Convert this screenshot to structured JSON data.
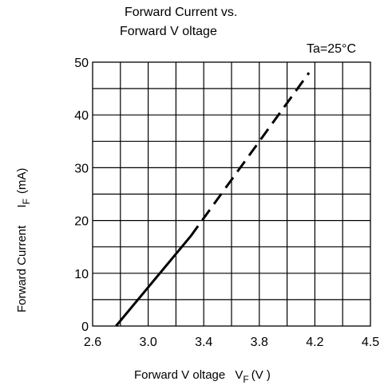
{
  "chart_data": {
    "type": "line",
    "title_line1": "Forward Current vs.",
    "title_line2": "Forward V oltage",
    "condition": "Ta=25°C",
    "xlabel": "Forward V oltage",
    "xlabel_symbol": "V",
    "xlabel_sub": "F",
    "xlabel_unit": "(V )",
    "ylabel_left": "Forward Current",
    "ylabel_symbol": "I",
    "ylabel_sub": "F",
    "ylabel_unit": "(mA)",
    "xlim": [
      2.6,
      4.5
    ],
    "ylim": [
      0,
      50
    ],
    "x_ticks": [
      "2.6",
      "3.0",
      "3.4",
      "3.8",
      "4.2",
      "4.5"
    ],
    "y_ticks": [
      "50",
      "40",
      "30",
      "20",
      "10",
      "0"
    ],
    "grid": true,
    "series": [
      {
        "solid": {
          "x": [
            2.76,
            3.27
          ],
          "y": [
            0,
            17
          ]
        },
        "dashed": {
          "x": [
            3.27,
            4.08
          ],
          "y": [
            17,
            48
          ]
        }
      }
    ]
  }
}
